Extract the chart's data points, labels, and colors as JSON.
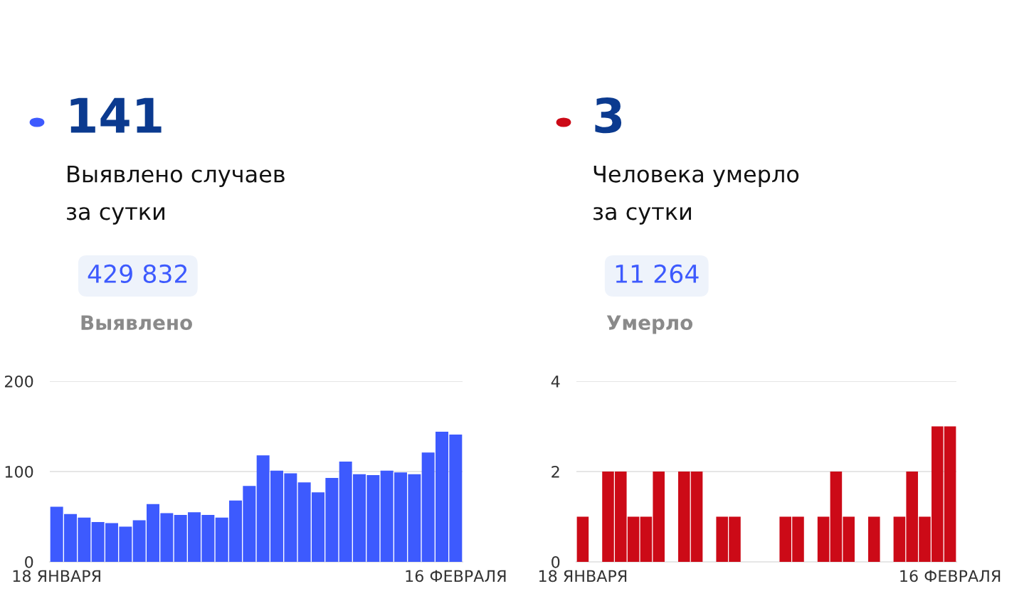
{
  "chart_data": [
    {
      "type": "bar",
      "title": "141",
      "subtitle": "Выявлено случаев\nза сутки",
      "annotations": [
        "429 832",
        "Выявлено"
      ],
      "categories": [
        "18 ЯНВАРЯ",
        null,
        null,
        null,
        null,
        null,
        null,
        null,
        null,
        null,
        null,
        null,
        null,
        null,
        null,
        null,
        null,
        null,
        null,
        null,
        null,
        null,
        null,
        null,
        null,
        null,
        null,
        null,
        null,
        "16 ФЕВРАЛЯ"
      ],
      "series": [
        {
          "color": "#3d5afe",
          "values": [
            61,
            53,
            49,
            44,
            43,
            39,
            46,
            64,
            54,
            52,
            55,
            52,
            49,
            68,
            84,
            118,
            101,
            98,
            88,
            77,
            93,
            111,
            97,
            96,
            101,
            99,
            97,
            121,
            144,
            141
          ]
        }
      ],
      "ylim": [
        0,
        200
      ],
      "yticks": [
        0,
        100,
        200
      ],
      "grid": "y",
      "legend": false
    },
    {
      "type": "bar",
      "title": "3",
      "subtitle": "Человека умерло\nза сутки",
      "annotations": [
        "11 264",
        "Умерло"
      ],
      "categories": [
        "18 ЯНВАРЯ",
        null,
        null,
        null,
        null,
        null,
        null,
        null,
        null,
        null,
        null,
        null,
        null,
        null,
        null,
        null,
        null,
        null,
        null,
        null,
        null,
        null,
        null,
        null,
        null,
        null,
        null,
        null,
        null,
        "16 ФЕВРАЛЯ"
      ],
      "series": [
        {
          "color": "#cc0a17",
          "values": [
            1,
            0,
            2,
            2,
            1,
            1,
            2,
            0,
            2,
            2,
            0,
            1,
            1,
            0,
            0,
            0,
            1,
            1,
            0,
            1,
            2,
            1,
            0,
            1,
            0,
            1,
            2,
            1,
            3,
            3
          ]
        }
      ],
      "ylim": [
        0,
        4
      ],
      "yticks": [
        0,
        2,
        4
      ],
      "grid": "y",
      "legend": false
    }
  ]
}
